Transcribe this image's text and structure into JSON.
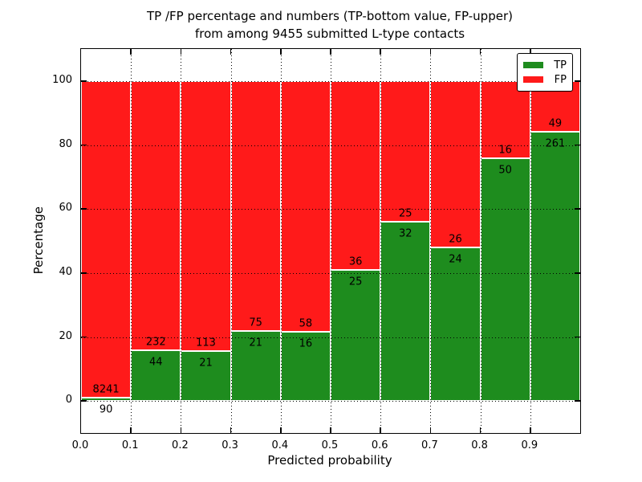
{
  "title": {
    "line1": "TP /FP percentage and numbers (TP-bottom value, FP-upper)",
    "line2": "from among 9455 submitted L-type contacts"
  },
  "axes": {
    "ylabel": "Percentage",
    "xlabel": "Predicted probability",
    "y_tick_labels": [
      "0",
      "20",
      "40",
      "60",
      "80",
      "100"
    ],
    "y_tick_values": [
      0,
      20,
      40,
      60,
      80,
      100
    ],
    "x_tick_labels": [
      "0.0",
      "0.1",
      "0.2",
      "0.3",
      "0.4",
      "0.5",
      "0.6",
      "0.7",
      "0.8",
      "0.9"
    ],
    "x_tick_values": [
      0.0,
      0.1,
      0.2,
      0.3,
      0.4,
      0.5,
      0.6,
      0.7,
      0.8,
      0.9
    ]
  },
  "legend": {
    "items": [
      {
        "label": "TP",
        "color": "#1E8C1E"
      },
      {
        "label": "FP",
        "color": "#FF1A1A"
      }
    ]
  },
  "chart_data": {
    "type": "bar",
    "subtype": "stacked-percentage",
    "title": "TP /FP percentage and numbers (TP-bottom value, FP-upper) from among 9455 submitted L-type contacts",
    "xlabel": "Predicted probability",
    "ylabel": "Percentage",
    "categories": [
      "0.0-0.1",
      "0.1-0.2",
      "0.2-0.3",
      "0.3-0.4",
      "0.4-0.5",
      "0.5-0.6",
      "0.6-0.7",
      "0.7-0.8",
      "0.8-0.9",
      "0.9-1.0"
    ],
    "series": [
      {
        "name": "TP",
        "color": "#1E8C1E",
        "values": [
          90,
          44,
          21,
          21,
          16,
          25,
          32,
          24,
          50,
          261
        ]
      },
      {
        "name": "FP",
        "color": "#FF1A1A",
        "values": [
          8241,
          232,
          113,
          75,
          58,
          36,
          25,
          26,
          16,
          49
        ]
      }
    ],
    "tp_percent_per_bin": [
      1.08,
      15.94,
      15.67,
      21.88,
      21.62,
      40.98,
      56.14,
      48.0,
      75.76,
      84.19
    ],
    "total_contacts": 9455,
    "xlim": [
      0.0,
      1.0
    ],
    "ylim": [
      -10,
      110
    ],
    "grid": true,
    "grid_style": "dotted",
    "legend_position": "upper right",
    "bar_edge_color": "#ffffff"
  }
}
